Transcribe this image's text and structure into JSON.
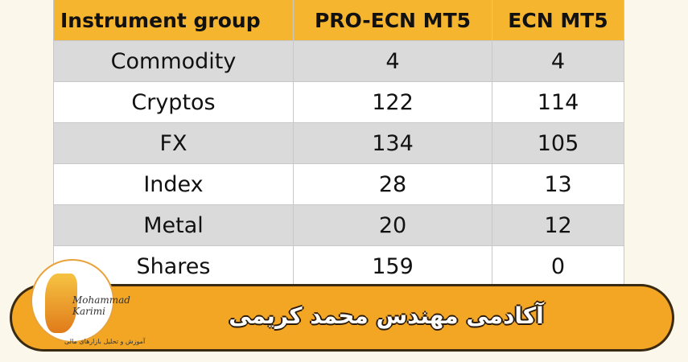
{
  "table": {
    "header": [
      "Instrument group",
      "PRO-ECN MT5",
      "ECN MT5"
    ],
    "rows": [
      [
        "Commodity",
        4,
        4
      ],
      [
        "Cryptos",
        122,
        114
      ],
      [
        "FX",
        134,
        105
      ],
      [
        "Index",
        28,
        13
      ],
      [
        "Metal",
        20,
        12
      ],
      [
        "Shares",
        159,
        0
      ]
    ]
  },
  "banner": {
    "title": "آکادمی مهندس محمد کریمی",
    "logo_name": "Mohammad Karimi",
    "logo_tagline": "آموزش و تحلیل بازارهای مالی"
  }
}
